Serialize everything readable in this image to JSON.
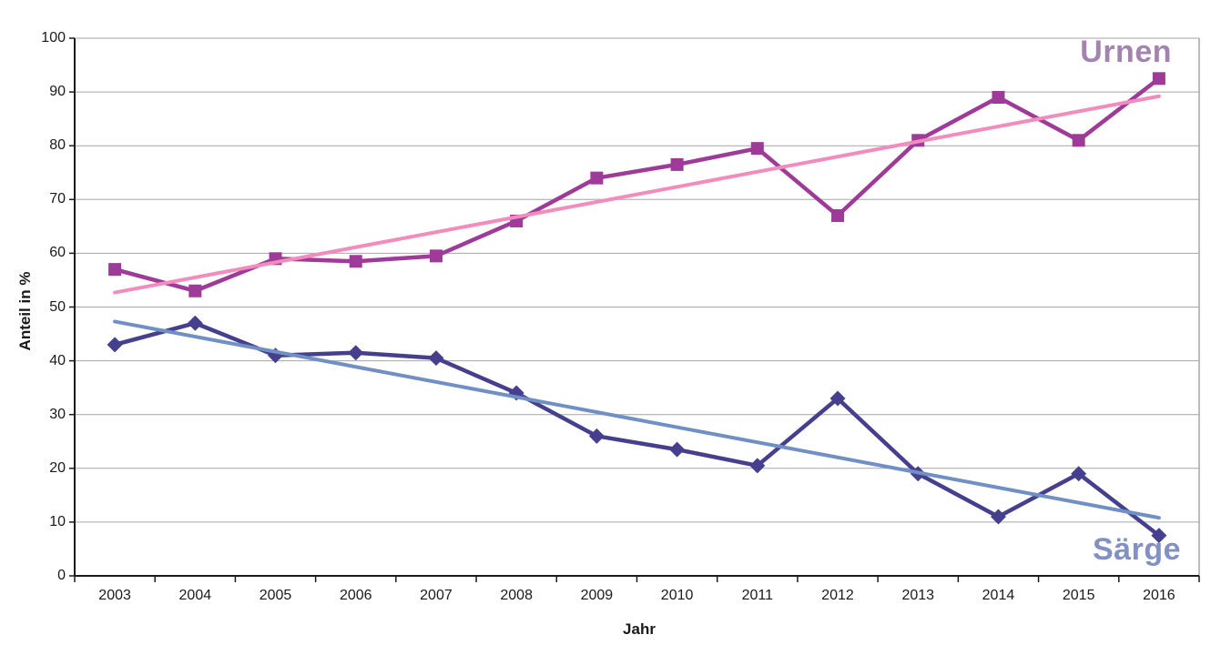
{
  "chart_data": {
    "type": "line",
    "title": "",
    "xlabel": "Jahr",
    "ylabel": "Anteil in %",
    "categories": [
      "2003",
      "2004",
      "2005",
      "2006",
      "2007",
      "2008",
      "2009",
      "2010",
      "2011",
      "2012",
      "2013",
      "2014",
      "2015",
      "2016"
    ],
    "ylim": [
      0,
      100
    ],
    "y_ticks": [
      0,
      10,
      20,
      30,
      40,
      50,
      60,
      70,
      80,
      90,
      100
    ],
    "grid": "horizontal-only",
    "legend_position": "inline-labels-right",
    "series": [
      {
        "name": "Urnen",
        "marker": "square",
        "color": "#9E3A97",
        "label_color": "#A284AE",
        "values": [
          57,
          53,
          59,
          58.5,
          59.5,
          66,
          74,
          76.5,
          79.5,
          67,
          81,
          89,
          81,
          92.5
        ]
      },
      {
        "name": "Särge",
        "marker": "diamond",
        "color": "#453F8D",
        "label_color": "#8290C4",
        "values": [
          43,
          47,
          41,
          41.5,
          40.5,
          34,
          26,
          23.5,
          20.5,
          33,
          19,
          11,
          19,
          7.5
        ]
      }
    ],
    "trendlines": [
      {
        "for": "Urnen",
        "color": "#F28CBC",
        "start_value": 52.7,
        "end_value": 89.2
      },
      {
        "for": "Särge",
        "color": "#7090C5",
        "start_value": 47.3,
        "end_value": 10.8
      }
    ],
    "axis_color": "#1a1a1a",
    "grid_color": "#a6a6a6"
  }
}
